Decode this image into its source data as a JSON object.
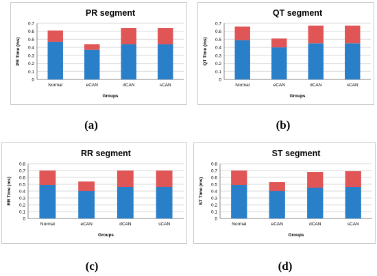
{
  "colors": {
    "base": "#2a7fc9",
    "top": "#e05555",
    "axis": "#868686",
    "grid": "#d9d9d9",
    "text": "#000000"
  },
  "chart_data": [
    {
      "type": "bar",
      "stacked": true,
      "title": "PR segment",
      "xlabel": "Groups",
      "ylabel": "PR Time (ms)",
      "categories": [
        "Normal",
        "eCAN",
        "dCAN",
        "sCAN"
      ],
      "ylim": [
        0,
        0.7
      ],
      "yticks": [
        "0",
        "0.1",
        "0.2",
        "0.3",
        "0.4",
        "0.5",
        "0.6",
        "0.7"
      ],
      "series": [
        {
          "values": [
            0.47,
            0.37,
            0.44,
            0.44
          ]
        },
        {
          "values": [
            0.14,
            0.07,
            0.2,
            0.2
          ]
        }
      ],
      "grid": true,
      "caption": "(a)"
    },
    {
      "type": "bar",
      "stacked": true,
      "title": "QT segment",
      "xlabel": "Groups",
      "ylabel": "QT Time (ms)",
      "categories": [
        "Normal",
        "eCAN",
        "dCAN",
        "sCAN"
      ],
      "ylim": [
        0,
        0.7
      ],
      "yticks": [
        "0",
        "0.1",
        "0.2",
        "0.3",
        "0.4",
        "0.5",
        "0.6",
        "0.7"
      ],
      "series": [
        {
          "values": [
            0.49,
            0.4,
            0.45,
            0.45
          ]
        },
        {
          "values": [
            0.17,
            0.11,
            0.22,
            0.22
          ]
        }
      ],
      "grid": true,
      "caption": "(b)"
    },
    {
      "type": "bar",
      "stacked": true,
      "title": "RR segment",
      "xlabel": "Groups",
      "ylabel": "RR Time (ms)",
      "categories": [
        "Normal",
        "eCAN",
        "dCAN",
        "sCAN"
      ],
      "ylim": [
        0,
        0.8
      ],
      "yticks": [
        "0",
        "0.1",
        "0.2",
        "0.3",
        "0.4",
        "0.5",
        "0.6",
        "0.7",
        "0.8"
      ],
      "series": [
        {
          "values": [
            0.49,
            0.4,
            0.46,
            0.46
          ]
        },
        {
          "values": [
            0.21,
            0.14,
            0.24,
            0.24
          ]
        }
      ],
      "grid": true,
      "caption": "(c)"
    },
    {
      "type": "bar",
      "stacked": true,
      "title": "ST segment",
      "xlabel": "Groups",
      "ylabel": "ST Time (ms)",
      "categories": [
        "Normal",
        "eCAN",
        "dCAN",
        "sCAN"
      ],
      "ylim": [
        0,
        0.8
      ],
      "yticks": [
        "0",
        "0.1",
        "0.2",
        "0.3",
        "0.4",
        "0.5",
        "0.6",
        "0.7",
        "0.8"
      ],
      "series": [
        {
          "values": [
            0.49,
            0.4,
            0.45,
            0.46
          ]
        },
        {
          "values": [
            0.21,
            0.13,
            0.23,
            0.23
          ]
        }
      ],
      "grid": true,
      "caption": "(d)"
    }
  ]
}
